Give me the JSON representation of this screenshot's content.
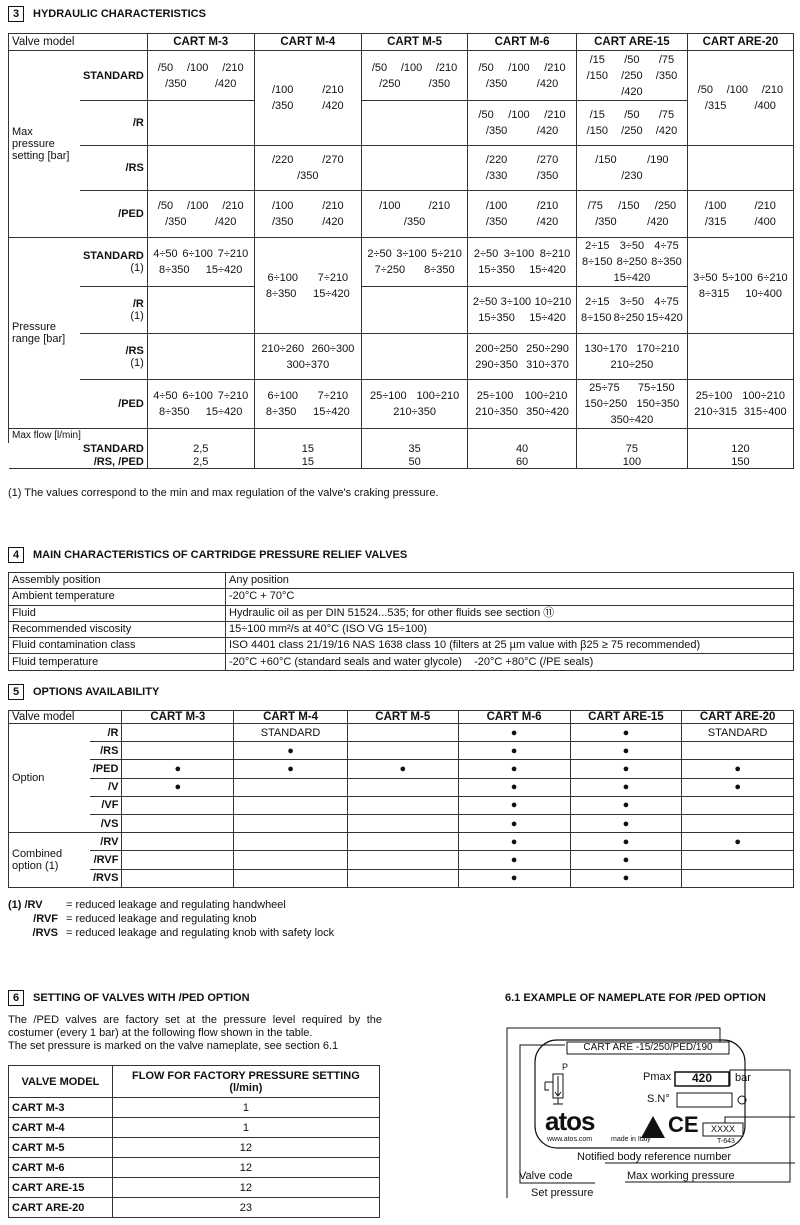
{
  "hydraulic": {
    "num": "3",
    "title": "HYDRAULIC CHARACTERISTICS",
    "columns": [
      "Valve model",
      "CART M-3",
      "CART M-4",
      "CART M-5",
      "CART M-6",
      "CART ARE-15",
      "CART ARE-20"
    ],
    "groups": [
      {
        "label": "Max pressure setting [bar]",
        "rows": [
          {
            "label": "STANDARD",
            "note": "",
            "cells": [
              [
                [
                  "/50",
                  "/100",
                  "/210"
                ],
                [
                  "/350",
                  "/420"
                ]
              ],
              [
                [
                  "/100",
                  "/210"
                ],
                [
                  "/350",
                  "/420"
                ]
              ],
              [
                [
                  "/50",
                  "/100",
                  "/210"
                ],
                [
                  "/250",
                  "/350"
                ]
              ],
              [
                [
                  "/50",
                  "/100",
                  "/210"
                ],
                [
                  "/350",
                  "/420"
                ]
              ],
              [
                [
                  "/15",
                  "/50",
                  "/75"
                ],
                [
                  "/150",
                  "/250",
                  "/350"
                ],
                [
                  "/420"
                ]
              ],
              [
                [
                  "/50",
                  "/100",
                  "/210"
                ],
                [
                  "/315",
                  "/400"
                ]
              ]
            ]
          },
          {
            "label": "/R",
            "note": "",
            "cells": [
              [],
              null,
              [],
              [
                [
                  "/50",
                  "/100",
                  "/210"
                ],
                [
                  "/350",
                  "/420"
                ]
              ],
              [
                [
                  "/15",
                  "/50",
                  "/75"
                ],
                [
                  "/150",
                  "/250",
                  "/420"
                ]
              ],
              null
            ]
          },
          {
            "label": "/RS",
            "note": "",
            "cells": [
              [],
              [
                [
                  "/220",
                  "/270"
                ],
                [
                  "/350"
                ]
              ],
              [],
              [
                [
                  "/220",
                  "/270"
                ],
                [
                  "/330",
                  "/350"
                ]
              ],
              [
                [
                  "/150",
                  "/190"
                ],
                [
                  "/230"
                ]
              ],
              []
            ]
          },
          {
            "label": "/PED",
            "note": "",
            "cells": [
              [
                [
                  "/50",
                  "/100",
                  "/210"
                ],
                [
                  "/350",
                  "/420"
                ]
              ],
              [
                [
                  "/100",
                  "/210"
                ],
                [
                  "/350",
                  "/420"
                ]
              ],
              [
                [
                  "/100",
                  "/210"
                ],
                [
                  "/350"
                ]
              ],
              [
                [
                  "/100",
                  "/210"
                ],
                [
                  "/350",
                  "/420"
                ]
              ],
              [
                [
                  "/75",
                  "/150",
                  "/250"
                ],
                [
                  "/350",
                  "/420"
                ]
              ],
              [
                [
                  "/100",
                  "/210"
                ],
                [
                  "/315",
                  "/400"
                ]
              ]
            ]
          }
        ]
      },
      {
        "label": "Pressure range [bar]",
        "rows": [
          {
            "label": "STANDARD",
            "note": "(1)",
            "cells": [
              [
                [
                  "4÷50",
                  "6÷100",
                  "7÷210"
                ],
                [
                  "8÷350",
                  "15÷420"
                ]
              ],
              [
                [
                  "6÷100",
                  "7÷210"
                ],
                [
                  "8÷350",
                  "15÷420"
                ]
              ],
              [
                [
                  "2÷50",
                  "3÷100",
                  "5÷210"
                ],
                [
                  "7÷250",
                  "8÷350"
                ]
              ],
              [
                [
                  "2÷50",
                  "3÷100",
                  "8÷210"
                ],
                [
                  "15÷350",
                  "15÷420"
                ]
              ],
              [
                [
                  "2÷15",
                  "3÷50",
                  "4÷75"
                ],
                [
                  "8÷150",
                  "8÷250",
                  "8÷350"
                ],
                [
                  "15÷420"
                ]
              ],
              [
                [
                  "3÷50",
                  "5÷100",
                  "6÷210"
                ],
                [
                  "8÷315",
                  "10÷400"
                ]
              ]
            ]
          },
          {
            "label": "/R",
            "note": "(1)",
            "cells": [
              [],
              null,
              [],
              [
                [
                  "2÷50",
                  "3÷100",
                  "10÷210"
                ],
                [
                  "15÷350",
                  "15÷420"
                ]
              ],
              [
                [
                  "2÷15",
                  "3÷50",
                  "4÷75"
                ],
                [
                  "8÷150",
                  "8÷250",
                  "15÷420"
                ]
              ],
              null
            ]
          },
          {
            "label": "/RS",
            "note": "(1)",
            "cells": [
              [],
              [
                [
                  "210÷260",
                  "260÷300"
                ],
                [
                  "300÷370"
                ]
              ],
              [],
              [
                [
                  "200÷250",
                  "250÷290"
                ],
                [
                  "290÷350",
                  "310÷370"
                ]
              ],
              [
                [
                  "130÷170",
                  "170÷210"
                ],
                [
                  "210÷250"
                ]
              ],
              []
            ]
          },
          {
            "label": "/PED",
            "note": "",
            "cells": [
              [
                [
                  "4÷50",
                  "6÷100",
                  "7÷210"
                ],
                [
                  "8÷350",
                  "15÷420"
                ]
              ],
              [
                [
                  "6÷100",
                  "7÷210"
                ],
                [
                  "8÷350",
                  "15÷420"
                ]
              ],
              [
                [
                  "25÷100",
                  "100÷210"
                ],
                [
                  "210÷350"
                ]
              ],
              [
                [
                  "25÷100",
                  "100÷210"
                ],
                [
                  "210÷350",
                  "350÷420"
                ]
              ],
              [
                [
                  "25÷75",
                  "75÷150"
                ],
                [
                  "150÷250",
                  "150÷350"
                ],
                [
                  "350÷420"
                ]
              ],
              [
                [
                  "25÷100",
                  "100÷210"
                ],
                [
                  "210÷315",
                  "315÷400"
                ]
              ]
            ]
          }
        ]
      }
    ],
    "max_flow": {
      "label": "Max flow [l/min]",
      "rows": [
        {
          "label": "STANDARD",
          "values": [
            "2,5",
            "15",
            "35",
            "40",
            "75",
            "120"
          ]
        },
        {
          "label": "/RS, /PED",
          "values": [
            "2,5",
            "15",
            "50",
            "60",
            "100",
            "150"
          ]
        }
      ]
    },
    "footnote": "(1) The values correspond to the min and max regulation of the valve's craking pressure."
  },
  "main": {
    "num": "4",
    "title": "MAIN CHARACTERISTICS OF CARTRIDGE PRESSURE RELIEF VALVES",
    "rows": [
      [
        "Assembly position",
        "Any position"
      ],
      [
        "Ambient temperature",
        "-20°C + 70°C"
      ],
      [
        "Fluid",
        "Hydraulic oil as per DIN 51524...535; for other fluids see section ⑪"
      ],
      [
        "Recommended viscosity",
        "15÷100 mm²/s at 40°C (ISO VG 15÷100)"
      ],
      [
        "Fluid contamination class",
        "ISO 4401 class 21/19/16 NAS 1638 class 10 (filters at 25 µm value with β25 ≥ 75 recommended)"
      ],
      [
        "Fluid temperature",
        "-20°C +60°C (standard seals and water glycole)    -20°C +80°C (/PE seals)"
      ]
    ]
  },
  "options": {
    "num": "5",
    "title": "OPTIONS AVAILABILITY",
    "columns": [
      "Valve model",
      "CART M-3",
      "CART M-4",
      "CART M-5",
      "CART M-6",
      "CART ARE-15",
      "CART ARE-20"
    ],
    "groups": [
      {
        "label": "Option",
        "rows": [
          {
            "label": "/R",
            "cells": [
              "",
              "STANDARD",
              "",
              "●",
              "●",
              "STANDARD"
            ]
          },
          {
            "label": "/RS",
            "cells": [
              "",
              "●",
              "",
              "●",
              "●",
              ""
            ]
          },
          {
            "label": "/PED",
            "cells": [
              "●",
              "●",
              "●",
              "●",
              "●",
              "●"
            ]
          },
          {
            "label": "/V",
            "cells": [
              "●",
              "",
              "",
              "●",
              "●",
              "●"
            ]
          },
          {
            "label": "/VF",
            "cells": [
              "",
              "",
              "",
              "●",
              "●",
              ""
            ]
          },
          {
            "label": "/VS",
            "cells": [
              "",
              "",
              "",
              "●",
              "●",
              ""
            ]
          }
        ]
      },
      {
        "label": "Combined option (1)",
        "rows": [
          {
            "label": "/RV",
            "cells": [
              "",
              "",
              "",
              "●",
              "●",
              "●"
            ]
          },
          {
            "label": "/RVF",
            "cells": [
              "",
              "",
              "",
              "●",
              "●",
              ""
            ]
          },
          {
            "label": "/RVS",
            "cells": [
              "",
              "",
              "",
              "●",
              "●",
              ""
            ]
          }
        ]
      }
    ],
    "footnotes": [
      {
        "code": "(1) /RV",
        "text": "= reduced leakage and regulating handwheel"
      },
      {
        "code": "/RVF",
        "text": "= reduced leakage and regulating knob"
      },
      {
        "code": "/RVS",
        "text": "= reduced leakage and regulating knob with safety lock"
      }
    ]
  },
  "setting": {
    "num": "6",
    "title": "SETTING OF VALVES WITH /PED OPTION",
    "paragraph": [
      "The /PED valves are factory set at the pressure level required by the costumer (every 1 bar) at the following flow shown in the table.",
      "The set pressure is marked on the valve nameplate, see section 6.1"
    ],
    "headers": [
      "VALVE MODEL",
      "FLOW FOR FACTORY PRESSURE SETTING (l/min)"
    ],
    "rows": [
      [
        "CART M-3",
        "1"
      ],
      [
        "CART M-4",
        "1"
      ],
      [
        "CART M-5",
        "12"
      ],
      [
        "CART M-6",
        "12"
      ],
      [
        "CART ARE-15",
        "12"
      ],
      [
        "CART ARE-20",
        "23"
      ]
    ]
  },
  "nameplate": {
    "title": "6.1 EXAMPLE OF NAMEPLATE FOR /PED OPTION",
    "code": "CART ARE -15/250/PED/190",
    "pmax_label": "Pmax",
    "pmax_value": "420",
    "pmax_unit": "bar",
    "sn_label": "S.N°",
    "logo": "atos",
    "website": "www.atos.com",
    "made_in": "made in Italy",
    "ce": "CE",
    "body_number": "XXXX",
    "ref": "T-643",
    "callouts": {
      "notified": "Notified body reference number",
      "valve_code": "Valve code",
      "max_working": "Max working pressure",
      "set_pressure": "Set pressure"
    }
  }
}
